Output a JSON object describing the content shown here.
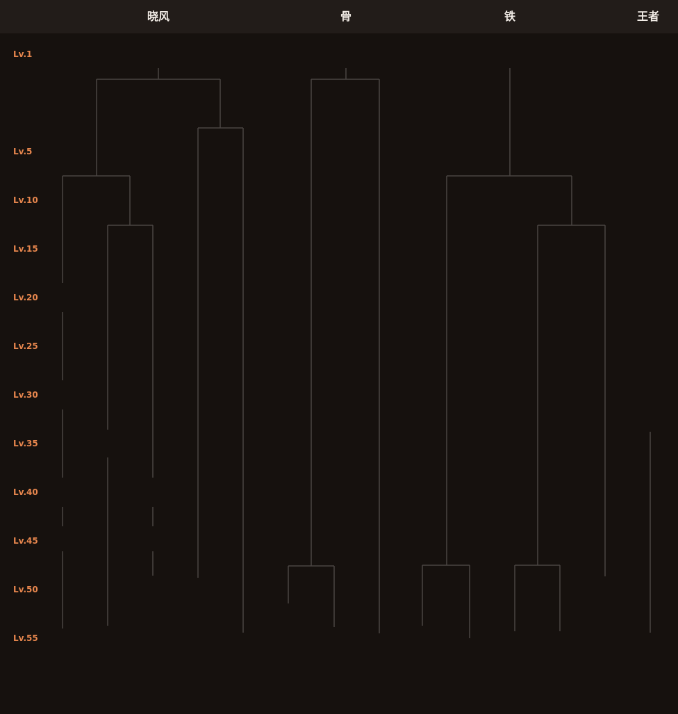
{
  "columns": [
    "晓风",
    "骨",
    "铁",
    "王者"
  ],
  "levels": [
    "Lv.1",
    "Lv.5",
    "Lv.10",
    "Lv.15",
    "Lv.20",
    "Lv.25",
    "Lv.30",
    "Lv.35",
    "Lv.40",
    "Lv.45",
    "Lv.50",
    "Lv.55"
  ],
  "colors": {
    "background": "#16110e",
    "header": "#221c19",
    "level_label": "#e8874e",
    "branch_line": "#4a4542",
    "title": "#f2ece6"
  }
}
